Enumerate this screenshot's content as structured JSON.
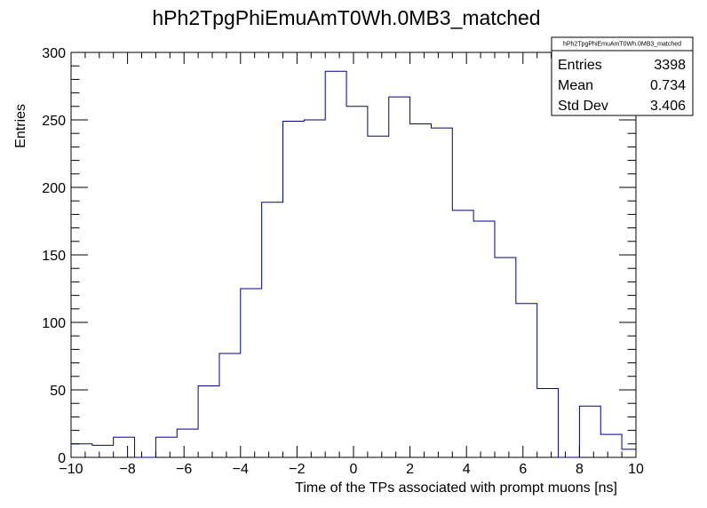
{
  "chart_data": {
    "type": "histogram",
    "title": "hPh2TpgPhiEmuAmT0Wh.0MB3_matched",
    "xlabel": "Time of the TPs associated with prompt muons [ns]",
    "ylabel": "Entries",
    "xlim": [
      -10,
      10
    ],
    "ylim": [
      0,
      300
    ],
    "x_ticks": [
      -10,
      -8,
      -6,
      -4,
      -2,
      0,
      2,
      4,
      6,
      8,
      10
    ],
    "y_ticks": [
      0,
      50,
      100,
      150,
      200,
      250,
      300
    ],
    "bin_width": 0.75,
    "bin_edges": [
      -10,
      -9.25,
      -8.5,
      -7.75,
      -7,
      -6.25,
      -5.5,
      -4.75,
      -4,
      -3.25,
      -2.5,
      -1.75,
      -1,
      -0.25,
      0.5,
      1.25,
      2,
      2.75,
      3.5,
      4.25,
      5,
      5.75,
      6.5,
      7.25,
      8,
      8.75,
      9.5,
      10
    ],
    "values": [
      10,
      9,
      15,
      0,
      15,
      21,
      53,
      77,
      125,
      189,
      249,
      250,
      286,
      260,
      238,
      267,
      247,
      244,
      183,
      175,
      148,
      114,
      51,
      0,
      38,
      17,
      6
    ],
    "color": "#000080",
    "stats": {
      "name": "hPh2TpgPhiEmuAmT0Wh.0MB3_matched",
      "rows": [
        {
          "label": "Entries",
          "value": "3398"
        },
        {
          "label": "Mean",
          "value": "0.734"
        },
        {
          "label": "Std Dev",
          "value": "3.406"
        }
      ]
    },
    "grid": false,
    "legend": "top-right"
  }
}
